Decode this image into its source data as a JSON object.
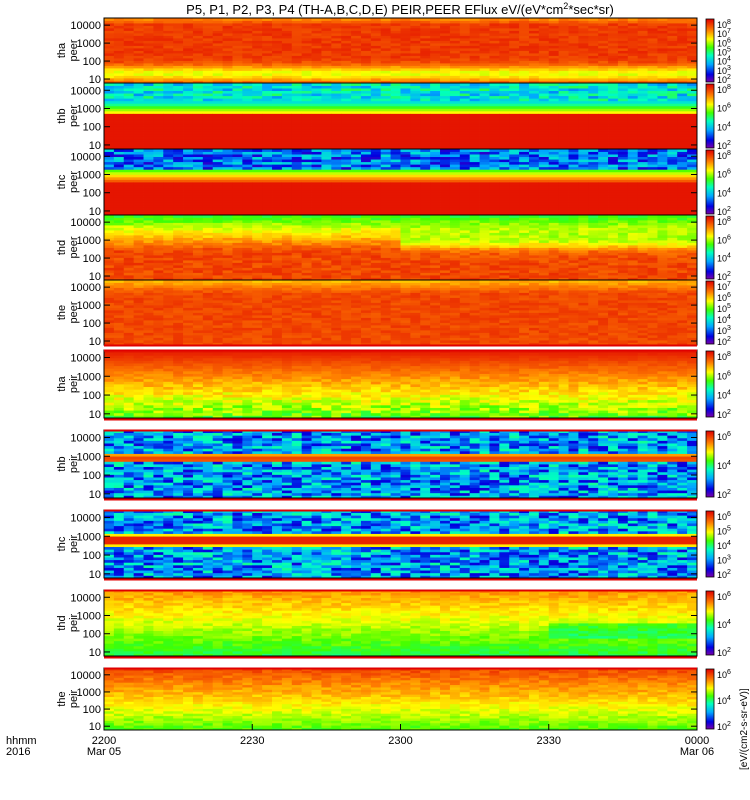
{
  "chart_data": {
    "type": "heatmap",
    "title": "P5, P1, P2, P3, P4 (TH-A,B,C,D,E) PEIR,PEER EFlux eV/(eV*cm2*sec*sr)",
    "title_parts": {
      "main": "P5, P1, P2, P3, P4 (TH-A,B,C,D,E) PEIR,PEER EFlux eV/(eV*cm",
      "sup": "2",
      "tail": "*sec*sr)"
    },
    "x_ticks": [
      {
        "value": "2200",
        "sub": "Mar 05"
      },
      {
        "value": "2230",
        "sub": ""
      },
      {
        "value": "2300",
        "sub": ""
      },
      {
        "value": "2330",
        "sub": ""
      },
      {
        "value": "0000",
        "sub": "Mar 06"
      }
    ],
    "x_axis_label": {
      "line1": "hhmm",
      "line2": "2016"
    },
    "y_scale": "log",
    "y_range": [
      6,
      25000
    ],
    "y_ticks": [
      "10",
      "100",
      "1000",
      "10000"
    ],
    "colorbar_unit_label": "[eV/(cm2-s-sr-eV)]",
    "panels": [
      {
        "id": "tha-peer",
        "label1": "tha",
        "label2": "peer",
        "colorbar_ticks": [
          "10^2",
          "10^3",
          "10^4",
          "10^5",
          "10^6",
          "10^7",
          "10^8"
        ],
        "profile": "peer_a"
      },
      {
        "id": "thb-peer",
        "label1": "thb",
        "label2": "peer",
        "colorbar_ticks": [
          "10^2",
          "10^4",
          "10^6",
          "10^8"
        ],
        "profile": "peer_b"
      },
      {
        "id": "thc-peer",
        "label1": "thc",
        "label2": "peer",
        "colorbar_ticks": [
          "10^2",
          "10^4",
          "10^6",
          "10^8"
        ],
        "profile": "peer_c"
      },
      {
        "id": "thd-peer",
        "label1": "thd",
        "label2": "peer",
        "colorbar_ticks": [
          "10^2",
          "10^4",
          "10^6",
          "10^8"
        ],
        "profile": "peer_d"
      },
      {
        "id": "the-peer",
        "label1": "the",
        "label2": "peer",
        "colorbar_ticks": [
          "10^2",
          "10^3",
          "10^4",
          "10^5",
          "10^6",
          "10^7"
        ],
        "profile": "peer_e"
      },
      {
        "id": "tha-peir",
        "label1": "tha",
        "label2": "peir",
        "colorbar_ticks": [
          "10^2",
          "10^4",
          "10^6",
          "10^8"
        ],
        "profile": "peir_a"
      },
      {
        "id": "thb-peir",
        "label1": "thb",
        "label2": "peir",
        "colorbar_ticks": [
          "10^2",
          "10^4",
          "10^6"
        ],
        "profile": "peir_b"
      },
      {
        "id": "thc-peir",
        "label1": "thc",
        "label2": "peir",
        "colorbar_ticks": [
          "10^2",
          "10^3",
          "10^4",
          "10^5",
          "10^6"
        ],
        "profile": "peir_c"
      },
      {
        "id": "thd-peir",
        "label1": "thd",
        "label2": "peir",
        "colorbar_ticks": [
          "10^2",
          "10^4",
          "10^6"
        ],
        "profile": "peir_d"
      },
      {
        "id": "the-peir",
        "label1": "the",
        "label2": "peir",
        "colorbar_ticks": [
          "10^2",
          "10^4",
          "10^6"
        ],
        "profile": "peir_e"
      }
    ]
  }
}
